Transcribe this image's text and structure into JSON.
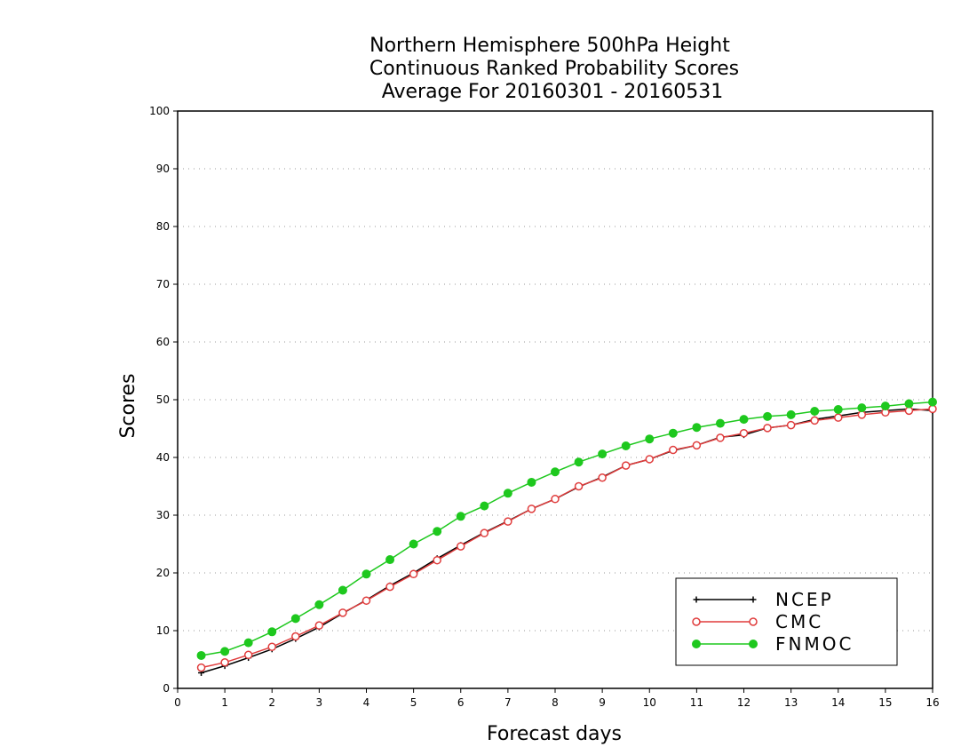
{
  "chart_data": {
    "type": "line",
    "title": [
      "Northern Hemisphere 500hPa Height",
      "Continuous Ranked Probability Scores",
      "Average For 20160301 - 20160531"
    ],
    "xlabel": "Forecast days",
    "ylabel": "Scores",
    "xlim": [
      0,
      16
    ],
    "ylim": [
      0,
      100
    ],
    "xticks": [
      0,
      1,
      2,
      3,
      4,
      5,
      6,
      7,
      8,
      9,
      10,
      11,
      12,
      13,
      14,
      15,
      16
    ],
    "yticks": [
      0,
      10,
      20,
      30,
      40,
      50,
      60,
      70,
      80,
      90,
      100
    ],
    "grid": "horizontal-dotted",
    "legend_position": "bottom-right",
    "x": [
      0.5,
      1,
      1.5,
      2,
      2.5,
      3,
      3.5,
      4,
      4.5,
      5,
      5.5,
      6,
      6.5,
      7,
      7.5,
      8,
      8.5,
      9,
      9.5,
      10,
      10.5,
      11,
      11.5,
      12,
      12.5,
      13,
      13.5,
      14,
      14.5,
      15,
      15.5,
      16
    ],
    "series": [
      {
        "name": "NCEP",
        "color": "#000000",
        "marker": "plus",
        "values": [
          2.7,
          3.9,
          5.3,
          6.8,
          8.6,
          10.6,
          13.0,
          15.3,
          17.8,
          20.0,
          22.5,
          24.8,
          27.0,
          29.0,
          31.1,
          32.8,
          34.9,
          36.6,
          38.6,
          39.7,
          41.2,
          42.1,
          43.5,
          43.9,
          45.1,
          45.6,
          46.6,
          47.2,
          47.8,
          48.1,
          48.4,
          48.1
        ]
      },
      {
        "name": "CMC",
        "color": "#e03c3c",
        "marker": "open-circle",
        "values": [
          3.6,
          4.5,
          5.8,
          7.2,
          9.0,
          10.9,
          13.1,
          15.2,
          17.6,
          19.8,
          22.2,
          24.6,
          26.9,
          28.9,
          31.1,
          32.8,
          35.0,
          36.5,
          38.6,
          39.7,
          41.3,
          42.1,
          43.4,
          44.2,
          45.1,
          45.6,
          46.4,
          46.9,
          47.4,
          47.8,
          48.1,
          48.4
        ]
      },
      {
        "name": "FNMOC",
        "color": "#1ec81e",
        "marker": "filled-circle",
        "values": [
          5.7,
          6.4,
          7.9,
          9.8,
          12.1,
          14.5,
          17.0,
          19.8,
          22.3,
          25.0,
          27.2,
          29.8,
          31.6,
          33.8,
          35.7,
          37.5,
          39.2,
          40.6,
          42.0,
          43.2,
          44.2,
          45.2,
          45.9,
          46.6,
          47.1,
          47.4,
          48.0,
          48.3,
          48.6,
          48.9,
          49.3,
          49.6
        ]
      }
    ]
  }
}
